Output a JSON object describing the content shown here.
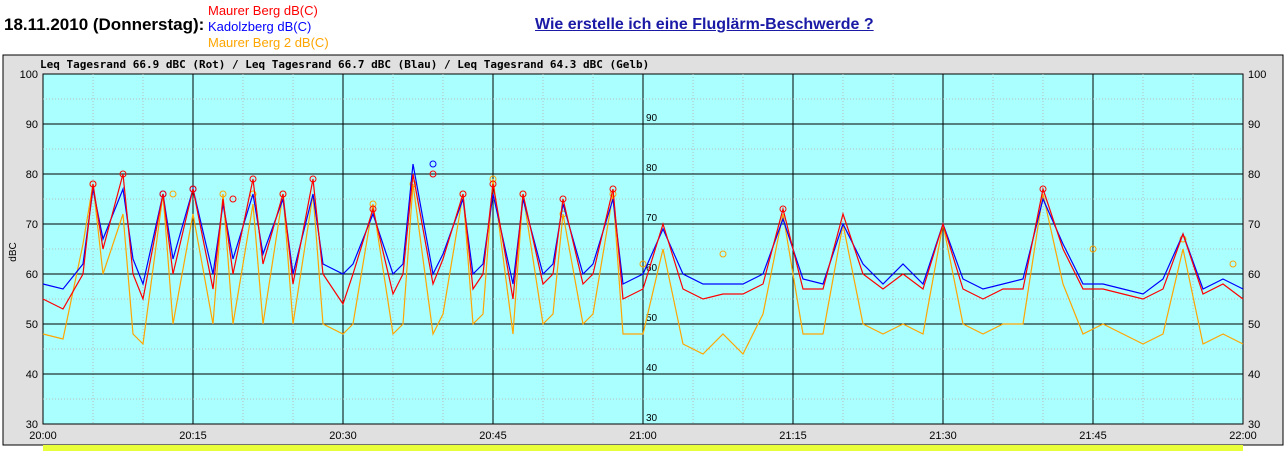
{
  "header": {
    "date_label": "18.11.2010 (Donnerstag):",
    "help_link": "Wie erstelle ich eine Fluglärm-Beschwerde ?"
  },
  "legend": [
    {
      "label": "Maurer Berg dB(C)",
      "color": "#ff0000"
    },
    {
      "label": "Kadolzberg dB(C)",
      "color": "#0000ff"
    },
    {
      "label": "Maurer Berg 2 dB(C)",
      "color": "#ffa500"
    }
  ],
  "chart_data": {
    "type": "line",
    "title": "Leq Tagesrand 66.9 dBC (Rot) / Leq Tagesrand 66.7 dBC (Blau) / Leq Tagesrand 64.3 dBC (Gelb)",
    "ylabel": "dBC",
    "xlabel": "",
    "ylim": [
      30,
      100
    ],
    "xlim": [
      "20:00",
      "22:00"
    ],
    "y_ticks": [
      30,
      40,
      50,
      60,
      70,
      80,
      90,
      100
    ],
    "x_ticks": [
      "20:00",
      "20:15",
      "20:30",
      "20:45",
      "21:00",
      "21:15",
      "21:30",
      "21:45",
      "22:00"
    ],
    "center_y_ticks": [
      30,
      40,
      50,
      60,
      70,
      80,
      90
    ],
    "grid": true,
    "background_color": "#aaffff",
    "series": [
      {
        "name": "Maurer Berg dB(C)",
        "color": "#ff0000",
        "x": [
          "20:00",
          "20:02",
          "20:04",
          "20:05",
          "20:06",
          "20:08",
          "20:09",
          "20:10",
          "20:12",
          "20:13",
          "20:15",
          "20:17",
          "20:18",
          "20:19",
          "20:21",
          "20:22",
          "20:24",
          "20:25",
          "20:27",
          "20:28",
          "20:30",
          "20:31",
          "20:33",
          "20:35",
          "20:36",
          "20:37",
          "20:39",
          "20:40",
          "20:42",
          "20:43",
          "20:44",
          "20:45",
          "20:47",
          "20:48",
          "20:50",
          "20:51",
          "20:52",
          "20:54",
          "20:55",
          "20:57",
          "20:58",
          "21:00",
          "21:02",
          "21:04",
          "21:06",
          "21:08",
          "21:10",
          "21:12",
          "21:14",
          "21:16",
          "21:18",
          "21:20",
          "21:22",
          "21:24",
          "21:26",
          "21:28",
          "21:30",
          "21:32",
          "21:34",
          "21:36",
          "21:38",
          "21:40",
          "21:42",
          "21:44",
          "21:46",
          "21:48",
          "21:50",
          "21:52",
          "21:54",
          "21:56",
          "21:58",
          "22:00"
        ],
        "values": [
          55,
          53,
          60,
          78,
          65,
          80,
          60,
          55,
          76,
          60,
          77,
          57,
          75,
          60,
          79,
          62,
          76,
          58,
          79,
          60,
          54,
          60,
          73,
          56,
          60,
          80,
          58,
          63,
          76,
          57,
          60,
          78,
          55,
          76,
          58,
          60,
          75,
          58,
          60,
          77,
          55,
          57,
          70,
          57,
          55,
          56,
          56,
          58,
          73,
          57,
          57,
          72,
          60,
          57,
          60,
          57,
          70,
          57,
          55,
          57,
          57,
          77,
          65,
          57,
          57,
          56,
          55,
          57,
          68,
          56,
          58,
          55
        ],
        "markers": [
          {
            "x": "20:05",
            "y": 78
          },
          {
            "x": "20:08",
            "y": 80
          },
          {
            "x": "20:12",
            "y": 76
          },
          {
            "x": "20:15",
            "y": 77
          },
          {
            "x": "20:19",
            "y": 75
          },
          {
            "x": "20:21",
            "y": 79
          },
          {
            "x": "20:24",
            "y": 76
          },
          {
            "x": "20:27",
            "y": 79
          },
          {
            "x": "20:33",
            "y": 73
          },
          {
            "x": "20:39",
            "y": 80
          },
          {
            "x": "20:42",
            "y": 76
          },
          {
            "x": "20:45",
            "y": 78
          },
          {
            "x": "20:48",
            "y": 76
          },
          {
            "x": "20:52",
            "y": 75
          },
          {
            "x": "20:57",
            "y": 77
          },
          {
            "x": "21:14",
            "y": 73
          },
          {
            "x": "21:40",
            "y": 77
          }
        ]
      },
      {
        "name": "Kadolzberg dB(C)",
        "color": "#0000ff",
        "x": [
          "20:00",
          "20:02",
          "20:04",
          "20:05",
          "20:06",
          "20:08",
          "20:09",
          "20:10",
          "20:12",
          "20:13",
          "20:15",
          "20:17",
          "20:18",
          "20:19",
          "20:21",
          "20:22",
          "20:24",
          "20:25",
          "20:27",
          "20:28",
          "20:30",
          "20:31",
          "20:33",
          "20:35",
          "20:36",
          "20:37",
          "20:39",
          "20:40",
          "20:42",
          "20:43",
          "20:44",
          "20:45",
          "20:47",
          "20:48",
          "20:50",
          "20:51",
          "20:52",
          "20:54",
          "20:55",
          "20:57",
          "20:58",
          "21:00",
          "21:02",
          "21:04",
          "21:06",
          "21:08",
          "21:10",
          "21:12",
          "21:14",
          "21:16",
          "21:18",
          "21:20",
          "21:22",
          "21:24",
          "21:26",
          "21:28",
          "21:30",
          "21:32",
          "21:34",
          "21:36",
          "21:38",
          "21:40",
          "21:42",
          "21:44",
          "21:46",
          "21:48",
          "21:50",
          "21:52",
          "21:54",
          "21:56",
          "21:58",
          "22:00"
        ],
        "values": [
          58,
          57,
          62,
          77,
          67,
          77,
          63,
          58,
          76,
          63,
          77,
          60,
          74,
          63,
          76,
          64,
          75,
          60,
          76,
          62,
          60,
          62,
          72,
          60,
          62,
          82,
          60,
          64,
          75,
          60,
          62,
          76,
          58,
          75,
          60,
          62,
          74,
          60,
          62,
          75,
          58,
          60,
          69,
          60,
          58,
          58,
          58,
          60,
          71,
          59,
          58,
          70,
          62,
          58,
          62,
          58,
          70,
          59,
          57,
          58,
          59,
          75,
          66,
          58,
          58,
          57,
          56,
          59,
          68,
          57,
          59,
          57
        ],
        "markers": [
          {
            "x": "20:12",
            "y": 76
          },
          {
            "x": "20:15",
            "y": 77
          },
          {
            "x": "20:39",
            "y": 82
          }
        ]
      },
      {
        "name": "Maurer Berg 2 dB(C)",
        "color": "#ffa500",
        "x": [
          "20:00",
          "20:02",
          "20:04",
          "20:05",
          "20:06",
          "20:08",
          "20:09",
          "20:10",
          "20:12",
          "20:13",
          "20:15",
          "20:17",
          "20:18",
          "20:19",
          "20:21",
          "20:22",
          "20:24",
          "20:25",
          "20:27",
          "20:28",
          "20:30",
          "20:31",
          "20:33",
          "20:35",
          "20:36",
          "20:37",
          "20:39",
          "20:40",
          "20:42",
          "20:43",
          "20:44",
          "20:45",
          "20:47",
          "20:48",
          "20:50",
          "20:51",
          "20:52",
          "20:54",
          "20:55",
          "20:57",
          "20:58",
          "21:00",
          "21:02",
          "21:04",
          "21:06",
          "21:08",
          "21:10",
          "21:12",
          "21:14",
          "21:16",
          "21:18",
          "21:20",
          "21:22",
          "21:24",
          "21:26",
          "21:28",
          "21:30",
          "21:32",
          "21:34",
          "21:36",
          "21:38",
          "21:40",
          "21:42",
          "21:44",
          "21:46",
          "21:48",
          "21:50",
          "21:52",
          "21:54",
          "21:56",
          "21:58",
          "22:00"
        ],
        "values": [
          48,
          47,
          66,
          78,
          60,
          72,
          48,
          46,
          76,
          50,
          72,
          50,
          76,
          50,
          74,
          50,
          76,
          50,
          76,
          50,
          48,
          50,
          74,
          48,
          50,
          78,
          48,
          52,
          76,
          50,
          52,
          79,
          48,
          76,
          50,
          52,
          72,
          50,
          52,
          76,
          48,
          48,
          65,
          46,
          44,
          48,
          44,
          52,
          72,
          48,
          48,
          70,
          50,
          48,
          50,
          48,
          70,
          50,
          48,
          50,
          50,
          76,
          58,
          48,
          50,
          48,
          46,
          48,
          65,
          46,
          48,
          46
        ],
        "markers": [
          {
            "x": "20:05",
            "y": 78
          },
          {
            "x": "20:13",
            "y": 76
          },
          {
            "x": "20:18",
            "y": 76
          },
          {
            "x": "20:21",
            "y": 76
          },
          {
            "x": "20:24",
            "y": 76
          },
          {
            "x": "20:33",
            "y": 74
          },
          {
            "x": "20:37",
            "y": 78
          },
          {
            "x": "20:42",
            "y": 76
          },
          {
            "x": "20:45",
            "y": 79
          },
          {
            "x": "20:48",
            "y": 76
          },
          {
            "x": "20:52",
            "y": 72
          },
          {
            "x": "20:57",
            "y": 76
          },
          {
            "x": "21:00",
            "y": 62
          },
          {
            "x": "21:08",
            "y": 64
          },
          {
            "x": "21:45",
            "y": 65
          },
          {
            "x": "21:54",
            "y": 67
          },
          {
            "x": "21:59",
            "y": 62
          }
        ]
      }
    ]
  }
}
